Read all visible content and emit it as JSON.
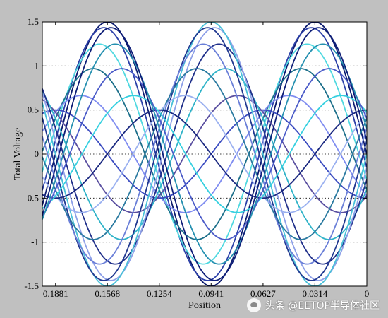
{
  "chart_data": {
    "type": "line",
    "title": "",
    "xlabel": "Position",
    "ylabel": "Total Voltage",
    "x_tick_labels": [
      "0.1881",
      "0.1568",
      "0.1254",
      "0.0941",
      "0.0627",
      "0.0314",
      "0"
    ],
    "x_ticks": [
      0.1881,
      0.1568,
      0.1254,
      0.0941,
      0.0627,
      0.0314,
      0
    ],
    "xlim": [
      0.1961,
      0
    ],
    "x_reversed": true,
    "y_tick_labels": [
      "1.5",
      "1",
      "0.5",
      "0",
      "-0.5",
      "-1",
      "-1.5"
    ],
    "y_ticks": [
      1.5,
      1,
      0.5,
      0,
      -0.5,
      -1,
      -1.5
    ],
    "ylim": [
      -1.5,
      1.5
    ],
    "grid": "horizontal-dotted",
    "background": "#ffffff",
    "wave": {
      "wavelength": 0.1254,
      "node_positions": [
        0.1568,
        0.0941,
        0.0314
      ],
      "node_amplitude": 0.5,
      "peak_amplitude": 1.5,
      "curve_count": 20
    },
    "series_colors": [
      "#0b1a6e",
      "#2b3fa8",
      "#4fd8e0",
      "#1c6f8a",
      "#7f8cf0",
      "#3a4bc0",
      "#5a4fa0",
      "#2fb3c8",
      "#1f2f8a",
      "#8ea0e8",
      "#48c0d8",
      "#203890",
      "#6a7fd8",
      "#2a7aa0",
      "#9ab0f0",
      "#1a2880",
      "#36d0e0",
      "#4a5ac8",
      "#2590b0",
      "#0e1e78"
    ]
  },
  "watermark": {
    "text": "头条 @EETOP半导体社区"
  }
}
